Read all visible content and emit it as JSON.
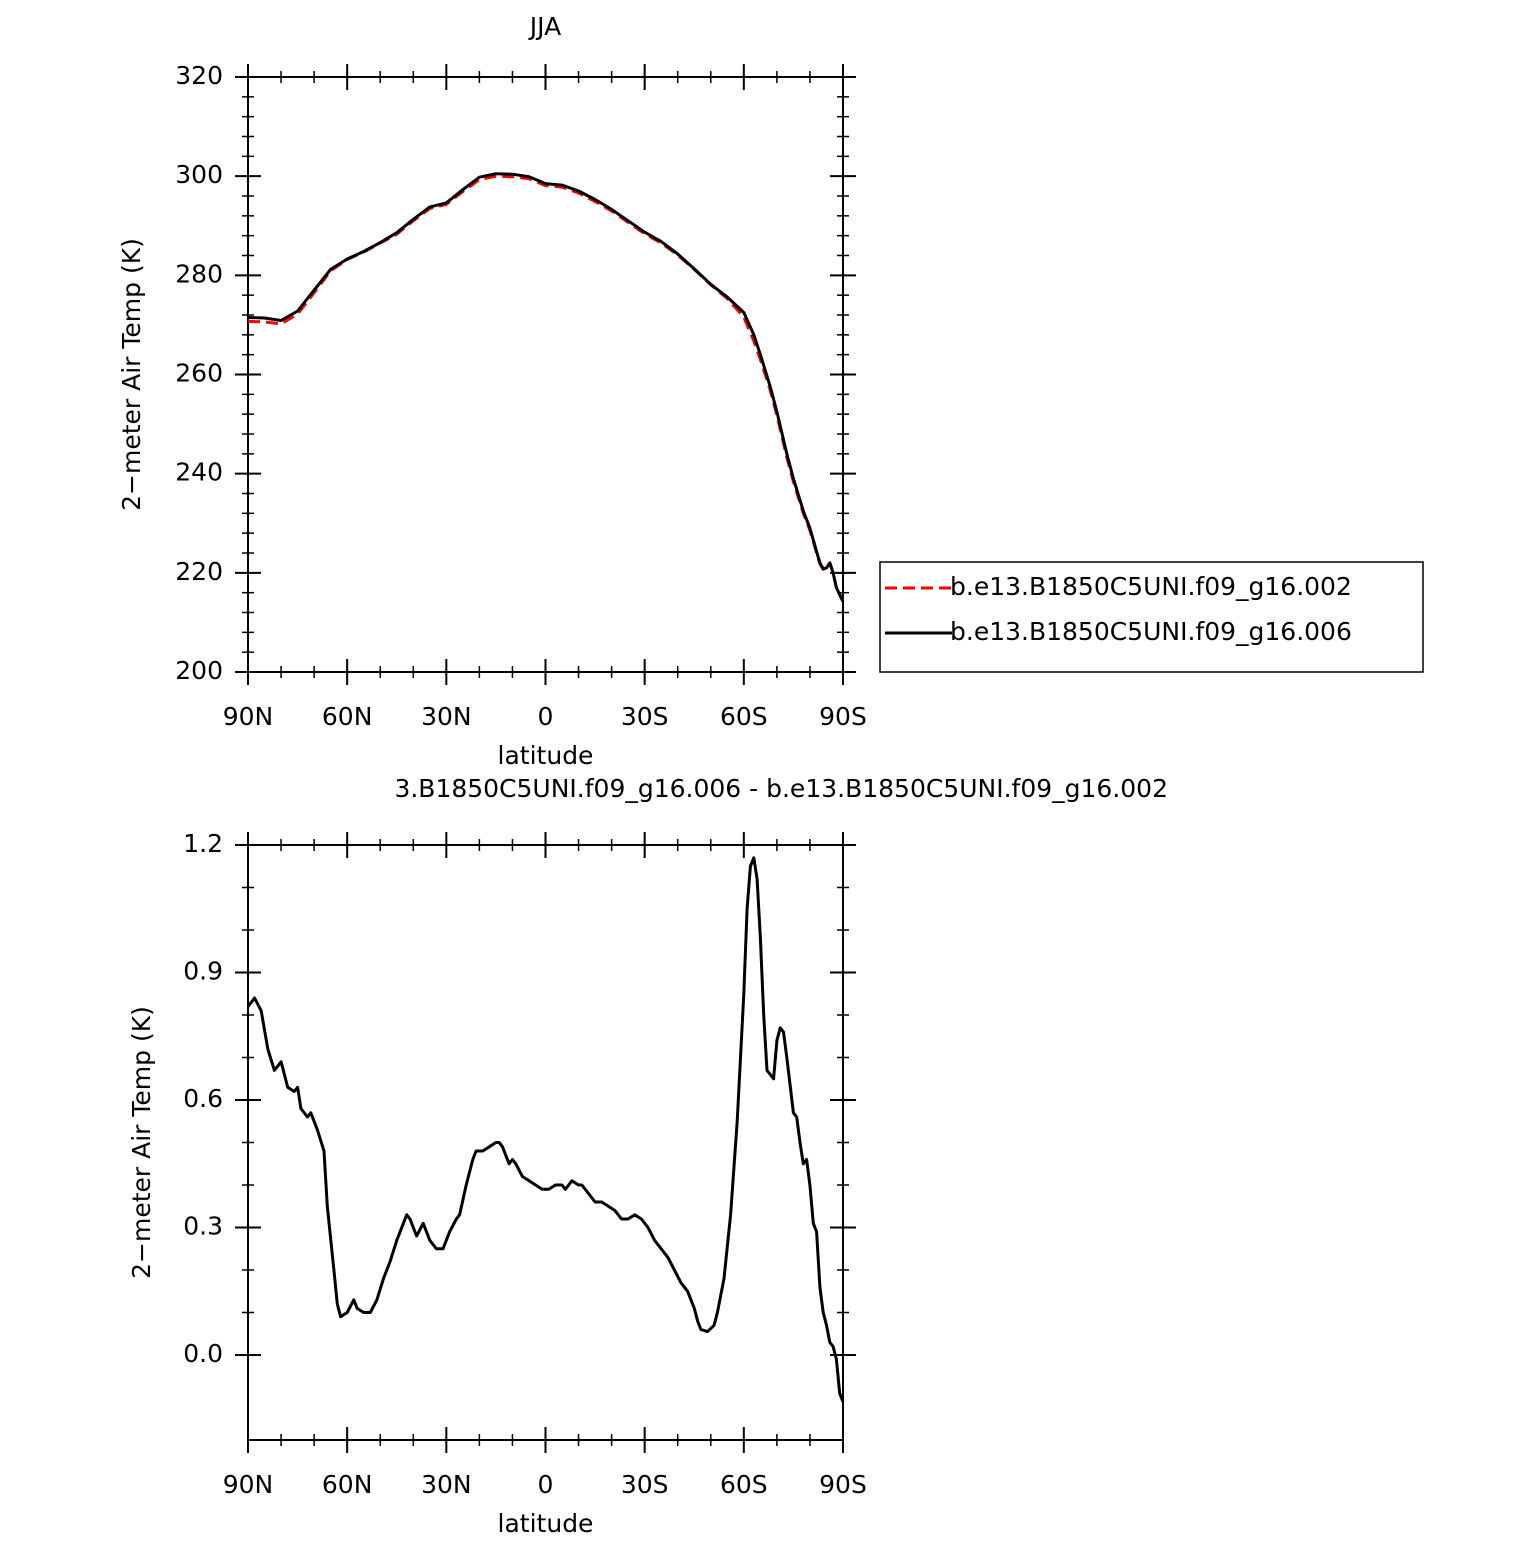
{
  "chart_data": [
    {
      "type": "line",
      "title": "JJA",
      "xlabel": "latitude",
      "ylabel": "2−meter Air Temp (K)",
      "x": [
        90,
        85,
        80,
        75,
        70,
        65,
        60,
        55,
        50,
        45,
        40,
        35,
        30,
        25,
        20,
        15,
        10,
        5,
        0,
        -5,
        -10,
        -15,
        -20,
        -25,
        -30,
        -35,
        -40,
        -45,
        -50,
        -55,
        -60,
        -63,
        -65,
        -68,
        -70,
        -73,
        -75,
        -78,
        -80,
        -83,
        -84,
        -85,
        -86,
        -87,
        -88,
        -90
      ],
      "series": [
        {
          "name": "b.e13.B1850C5UNI.f09_g16.002",
          "color": "#ff0000",
          "line_style": "dashed",
          "values": [
            270.7,
            270.6,
            270.2,
            272.2,
            276.5,
            280.9,
            283.2,
            284.7,
            286.5,
            288.3,
            291.0,
            293.5,
            294.3,
            296.9,
            299.3,
            300.0,
            299.9,
            299.5,
            298.1,
            297.8,
            296.6,
            294.9,
            293.0,
            290.7,
            288.4,
            286.5,
            284.1,
            281.2,
            278.1,
            275.3,
            271.6,
            266.8,
            263.0,
            256.8,
            251.8,
            243.3,
            238.4,
            232.0,
            228.6,
            221.8,
            220.7,
            220.9,
            222.0,
            220.0,
            217.0,
            214.3
          ]
        },
        {
          "name": "b.e13.B1850C5UNI.f09_g16.006",
          "color": "#000000",
          "line_style": "solid",
          "values": [
            271.5,
            271.4,
            270.9,
            272.8,
            277,
            281.2,
            283.3,
            284.8,
            286.6,
            288.6,
            291.3,
            293.8,
            294.6,
            297.3,
            299.8,
            300.5,
            300.4,
            299.9,
            298.5,
            298.2,
            297,
            295.3,
            293.3,
            291,
            288.7,
            286.8,
            284.3,
            281.3,
            278.2,
            275.6,
            272.5,
            268,
            264,
            257.5,
            252.5,
            244,
            239,
            232.5,
            229,
            222,
            220.8,
            221,
            222,
            220,
            217,
            214.2
          ]
        }
      ],
      "xlim": [
        90,
        -90
      ],
      "xticks": [
        {
          "value": 90,
          "label": "90N"
        },
        {
          "value": 60,
          "label": "60N"
        },
        {
          "value": 30,
          "label": "30N"
        },
        0,
        {
          "value": -30,
          "label": "30S"
        },
        {
          "value": -60,
          "label": "60S"
        },
        {
          "value": -90,
          "label": "90S"
        }
      ],
      "ylim": [
        200,
        320
      ],
      "yticks": [
        200,
        220,
        240,
        260,
        280,
        300,
        320
      ],
      "legend": "right"
    },
    {
      "type": "line",
      "title": "3.B1850C5UNI.f09_g16.006 - b.e13.B1850C5UNI.f09_g16.002",
      "xlabel": "latitude",
      "ylabel": "2−meter Air Temp (K)",
      "x": [
        90,
        88,
        86,
        84,
        82,
        80,
        78,
        76,
        75,
        74,
        72,
        71,
        69,
        67,
        66,
        64,
        63,
        62,
        60,
        58,
        57,
        55,
        53,
        51,
        49,
        47,
        45,
        43,
        42,
        41,
        39,
        37,
        35,
        33,
        31,
        29,
        27,
        26,
        24,
        22,
        21,
        19,
        17,
        15,
        14,
        13,
        12,
        11,
        10,
        9,
        7,
        5,
        3,
        1,
        -1,
        -3,
        -5,
        -6,
        -8,
        -10,
        -11,
        -13,
        -15,
        -17,
        -19,
        -21,
        -23,
        -25,
        -27,
        -29,
        -31,
        -33,
        -35,
        -37,
        -39,
        -41,
        -43,
        -45,
        -46,
        -47,
        -49,
        -51,
        -52,
        -54,
        -56,
        -58,
        -60,
        -61,
        -62,
        -63,
        -64,
        -65,
        -66,
        -67,
        -69,
        -70,
        -71,
        -72,
        -73,
        -75,
        -76,
        -77,
        -78,
        -79,
        -80,
        -81,
        -82,
        -83,
        -84,
        -85,
        -86,
        -87,
        -88,
        -89,
        -90
      ],
      "values": [
        0.82,
        0.84,
        0.81,
        0.72,
        0.67,
        0.69,
        0.63,
        0.62,
        0.63,
        0.58,
        0.56,
        0.57,
        0.53,
        0.48,
        0.35,
        0.2,
        0.12,
        0.09,
        0.1,
        0.13,
        0.11,
        0.1,
        0.1,
        0.13,
        0.18,
        0.22,
        0.27,
        0.31,
        0.33,
        0.32,
        0.28,
        0.31,
        0.27,
        0.25,
        0.25,
        0.29,
        0.32,
        0.33,
        0.4,
        0.46,
        0.48,
        0.48,
        0.49,
        0.5,
        0.5,
        0.49,
        0.47,
        0.45,
        0.46,
        0.45,
        0.42,
        0.41,
        0.4,
        0.39,
        0.39,
        0.4,
        0.4,
        0.39,
        0.41,
        0.4,
        0.4,
        0.38,
        0.36,
        0.36,
        0.35,
        0.34,
        0.32,
        0.32,
        0.33,
        0.32,
        0.3,
        0.27,
        0.25,
        0.23,
        0.2,
        0.17,
        0.15,
        0.11,
        0.08,
        0.06,
        0.055,
        0.07,
        0.1,
        0.18,
        0.33,
        0.55,
        0.85,
        1.05,
        1.15,
        1.17,
        1.12,
        0.98,
        0.8,
        0.67,
        0.65,
        0.74,
        0.77,
        0.76,
        0.7,
        0.57,
        0.56,
        0.5,
        0.45,
        0.46,
        0.4,
        0.31,
        0.29,
        0.16,
        0.1,
        0.07,
        0.03,
        0.02,
        -0.01,
        -0.09,
        -0.11
      ],
      "color": "#000000",
      "xlim": [
        90,
        -90
      ],
      "xticks": [
        {
          "value": 90,
          "label": "90N"
        },
        {
          "value": 60,
          "label": "60N"
        },
        {
          "value": 30,
          "label": "30N"
        },
        0,
        {
          "value": -30,
          "label": "30S"
        },
        {
          "value": -60,
          "label": "60S"
        },
        {
          "value": -90,
          "label": "90S"
        }
      ],
      "ylim": [
        -0.2,
        1.2
      ],
      "yticks": [
        {
          "value": 0,
          "label": "0.0"
        },
        0.3,
        0.6,
        0.9,
        1.2
      ]
    }
  ]
}
